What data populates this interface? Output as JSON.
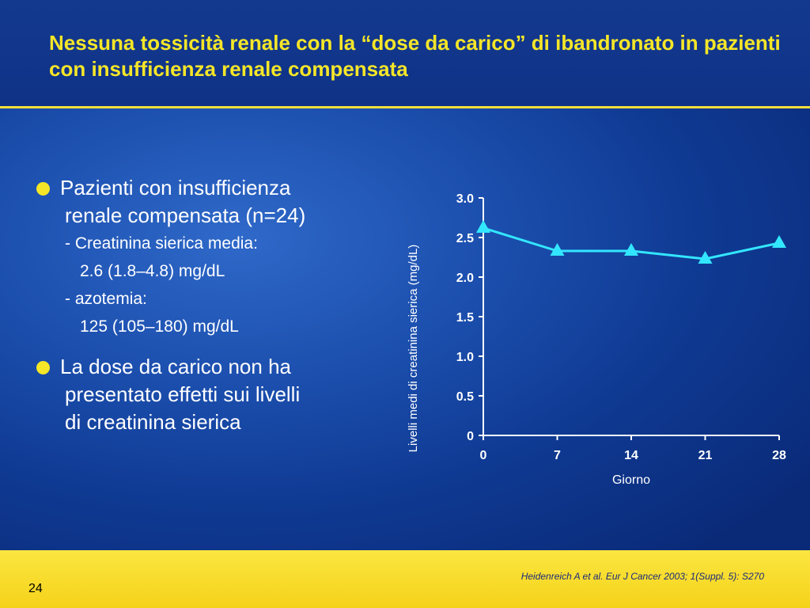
{
  "slide": {
    "title": "Nessuna tossicità renale con la “dose da carico” di ibandronato in pazienti con insufficienza renale compensata",
    "bullets": [
      {
        "main_line1": "Pazienti con insufficienza",
        "main_line2": "renale compensata (n=24)",
        "sub1_label": "- Creatinina sierica media:",
        "sub1_value": "2.6 (1.8–4.8) mg/dL",
        "sub2_label": "- azotemia:",
        "sub2_value": "125 (105–180) mg/dL"
      },
      {
        "main_line1": "La dose da carico non ha",
        "main_line2": "presentato effetti sui livelli",
        "main_line3": "di creatinina sierica"
      }
    ],
    "citation": "Heidenreich A et al. Eur J Cancer 2003; 1(Suppl. 5): S270",
    "page_number": "24"
  },
  "colors": {
    "title": "#f5e628",
    "series_line": "#33e6ff",
    "footer": "#f7dc2a"
  },
  "chart_data": {
    "type": "line",
    "xlabel": "Giorno",
    "ylabel": "Livelli medi di creatinina sierica  (mg/dL)",
    "x": [
      0,
      7,
      14,
      21,
      28
    ],
    "xticks": [
      "0",
      "7",
      "14",
      "21",
      "28"
    ],
    "yticks": [
      "0",
      "0.5",
      "1.0",
      "1.5",
      "2.0",
      "2.5",
      "3.0"
    ],
    "ylim": [
      0,
      3.0
    ],
    "xlim": [
      0,
      28
    ],
    "series": [
      {
        "values": [
          2.62,
          2.33,
          2.33,
          2.23,
          2.43
        ],
        "marker": "triangle"
      }
    ],
    "grid": false
  }
}
